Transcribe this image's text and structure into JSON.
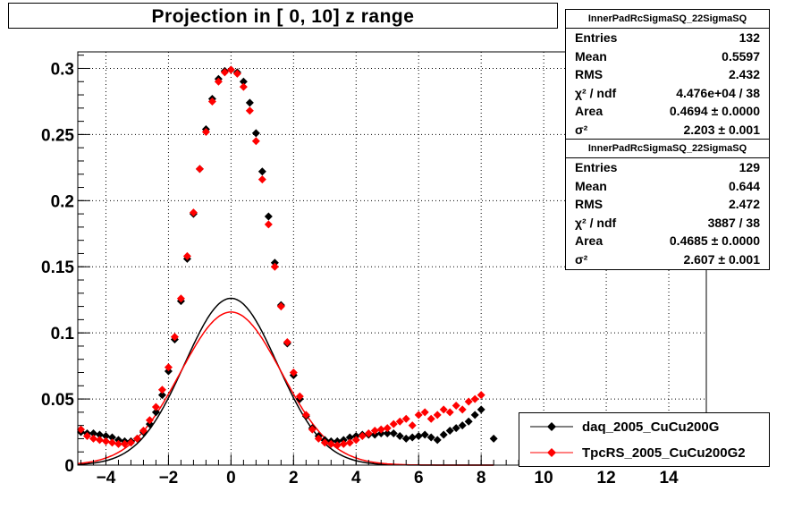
{
  "title": "Projection in [   0,  10] z range",
  "stats": [
    {
      "name": "InnerPadRcSigmaSQ_22SigmaSQ",
      "entries_label": "Entries",
      "entries": "132",
      "mean_label": "Mean",
      "mean": "0.5597",
      "rms_label": "RMS",
      "rms": "2.432",
      "chi2_label": "χ² / ndf",
      "chi2": "4.476e+04 / 38",
      "area_label": "Area",
      "area": "0.4694 ± 0.0000",
      "sigma_label": "σ²",
      "sigma": "2.203 ± 0.001"
    },
    {
      "name": "InnerPadRcSigmaSQ_22SigmaSQ",
      "entries_label": "Entries",
      "entries": "129",
      "mean_label": "Mean",
      "mean": "0.644",
      "rms_label": "RMS",
      "rms": "2.472",
      "chi2_label": "χ² / ndf",
      "chi2": "3887 / 38",
      "area_label": "Area",
      "area": "0.4685 ± 0.0000",
      "sigma_label": "σ²",
      "sigma": "2.607 ± 0.001"
    }
  ],
  "legend": [
    {
      "label": "daq_2005_CuCu200G",
      "color": "#000000"
    },
    {
      "label": "TpcRS_2005_CuCu200G2",
      "color": "#ff0000"
    }
  ],
  "chart_data": {
    "type": "scatter",
    "title": "Projection in [   0,  10] z range",
    "xlim": [
      -4.9,
      15.2
    ],
    "ylim": [
      0,
      0.3125
    ],
    "grid": true,
    "legend_position": "bottom-right",
    "x_ticks": [
      -4,
      -2,
      0,
      2,
      4,
      6,
      8,
      10,
      12,
      14
    ],
    "x_tick_labels": [
      "−4",
      "−2",
      "0",
      "2",
      "4",
      "6",
      "8",
      "10",
      "12",
      "14"
    ],
    "y_ticks": [
      0,
      0.05,
      0.1,
      0.15,
      0.2,
      0.25,
      0.3
    ],
    "y_tick_labels": [
      "0",
      "0.05",
      "0.1",
      "0.15",
      "0.2",
      "0.25",
      "0.3"
    ],
    "series": [
      {
        "name": "daq_2005_CuCu200G",
        "color": "#000000",
        "marker": "diamond",
        "x": [
          -4.8,
          -4.6,
          -4.4,
          -4.2,
          -4.0,
          -3.8,
          -3.6,
          -3.4,
          -3.2,
          -3.0,
          -2.8,
          -2.6,
          -2.4,
          -2.2,
          -2.0,
          -1.8,
          -1.6,
          -1.4,
          -1.2,
          -1.0,
          -0.8,
          -0.6,
          -0.4,
          -0.2,
          0.0,
          0.2,
          0.4,
          0.6,
          0.8,
          1.0,
          1.2,
          1.4,
          1.6,
          1.8,
          2.0,
          2.2,
          2.4,
          2.6,
          2.8,
          3.0,
          3.2,
          3.4,
          3.6,
          3.8,
          4.0,
          4.2,
          4.4,
          4.6,
          4.8,
          5.0,
          5.2,
          5.4,
          5.6,
          5.8,
          6.0,
          6.2,
          6.4,
          6.6,
          6.8,
          7.0,
          7.2,
          7.4,
          7.6,
          7.8,
          8.0,
          8.4
        ],
        "y": [
          0.025,
          0.024,
          0.024,
          0.023,
          0.022,
          0.021,
          0.019,
          0.018,
          0.018,
          0.02,
          0.025,
          0.031,
          0.04,
          0.053,
          0.071,
          0.095,
          0.124,
          0.156,
          0.19,
          0.224,
          0.254,
          0.277,
          0.292,
          0.298,
          0.299,
          0.297,
          0.29,
          0.274,
          0.251,
          0.222,
          0.188,
          0.153,
          0.121,
          0.092,
          0.068,
          0.05,
          0.037,
          0.028,
          0.022,
          0.019,
          0.018,
          0.018,
          0.019,
          0.021,
          0.022,
          0.023,
          0.023,
          0.023,
          0.024,
          0.024,
          0.024,
          0.022,
          0.02,
          0.021,
          0.022,
          0.023,
          0.021,
          0.019,
          0.023,
          0.026,
          0.028,
          0.03,
          0.033,
          0.038,
          0.042,
          0.02
        ],
        "fit": {
          "area": 0.4694,
          "mean": 0.0,
          "sigma2": 2.203
        }
      },
      {
        "name": "TpcRS_2005_CuCu200G2",
        "color": "#ff0000",
        "marker": "diamond",
        "x": [
          -4.8,
          -4.6,
          -4.4,
          -4.2,
          -4.0,
          -3.8,
          -3.6,
          -3.4,
          -3.2,
          -3.0,
          -2.8,
          -2.6,
          -2.4,
          -2.2,
          -2.0,
          -1.8,
          -1.6,
          -1.4,
          -1.2,
          -1.0,
          -0.8,
          -0.6,
          -0.4,
          -0.2,
          0.0,
          0.2,
          0.4,
          0.6,
          0.8,
          1.0,
          1.2,
          1.4,
          1.6,
          1.8,
          2.0,
          2.2,
          2.4,
          2.6,
          2.8,
          3.0,
          3.2,
          3.4,
          3.6,
          3.8,
          4.0,
          4.2,
          4.4,
          4.6,
          4.8,
          5.0,
          5.2,
          5.4,
          5.6,
          5.8,
          6.0,
          6.2,
          6.4,
          6.6,
          6.8,
          7.0,
          7.2,
          7.4,
          7.6,
          7.8,
          8.0
        ],
        "y": [
          0.027,
          0.022,
          0.02,
          0.019,
          0.018,
          0.017,
          0.016,
          0.016,
          0.017,
          0.02,
          0.026,
          0.034,
          0.044,
          0.057,
          0.074,
          0.097,
          0.126,
          0.158,
          0.191,
          0.224,
          0.252,
          0.275,
          0.29,
          0.297,
          0.299,
          0.296,
          0.286,
          0.268,
          0.245,
          0.216,
          0.182,
          0.15,
          0.12,
          0.093,
          0.07,
          0.052,
          0.038,
          0.027,
          0.02,
          0.017,
          0.016,
          0.015,
          0.016,
          0.017,
          0.019,
          0.022,
          0.024,
          0.026,
          0.027,
          0.028,
          0.031,
          0.033,
          0.035,
          0.03,
          0.038,
          0.04,
          0.035,
          0.038,
          0.042,
          0.04,
          0.045,
          0.042,
          0.048,
          0.05,
          0.053
        ],
        "fit": {
          "area": 0.4685,
          "mean": 0.0,
          "sigma2": 2.607
        }
      }
    ]
  }
}
